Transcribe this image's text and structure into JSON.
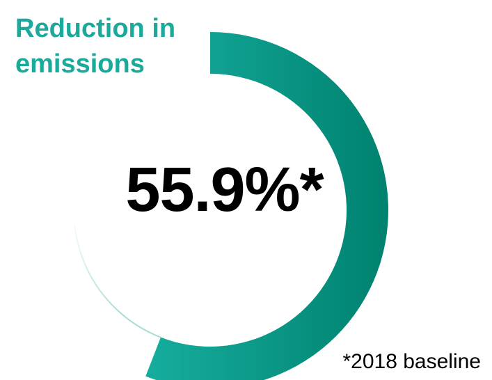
{
  "chart_data": {
    "type": "pie",
    "variant": "single-value-progress-ring",
    "title": [
      "Reduction in",
      "emissions"
    ],
    "value_percent": 55.9,
    "value_label": "55.9%*",
    "footnote": "*2018 baseline",
    "colors": {
      "title": "#1aa99a",
      "value": "#000000",
      "footnote": "#000000",
      "ring_start": "#1ab5a6",
      "ring_end": "#00816f",
      "track_edge": "#a8dcd5"
    }
  }
}
